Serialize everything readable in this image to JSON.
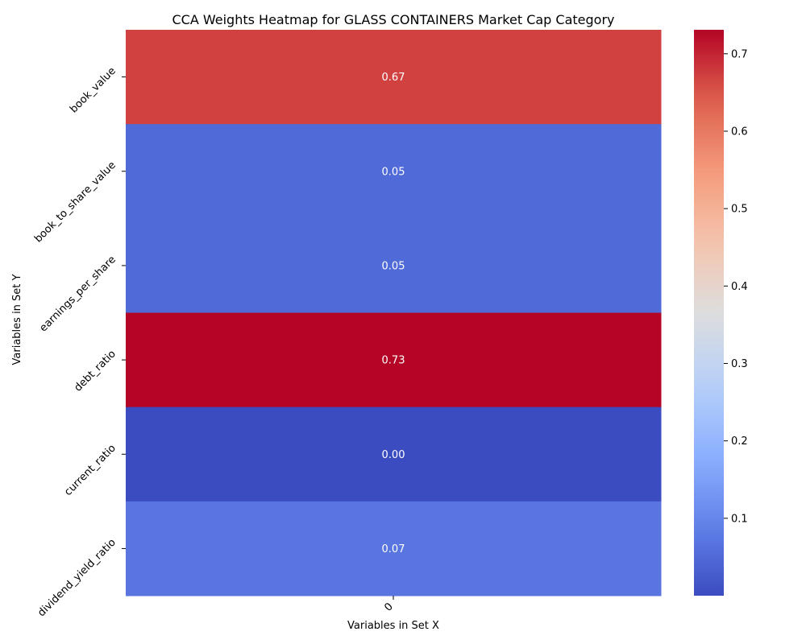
{
  "chart_data": {
    "type": "heatmap",
    "title": "CCA Weights Heatmap for GLASS CONTAINERS Market Cap Category",
    "xlabel": "Variables in Set X",
    "ylabel": "Variables in Set Y",
    "x_categories": [
      "0"
    ],
    "y_categories": [
      "book_value",
      "book_to_share_value",
      "earnings_per_share",
      "debt_ratio",
      "current_ratio",
      "dividend_yield_ratio"
    ],
    "values": [
      [
        0.67
      ],
      [
        0.05
      ],
      [
        0.05
      ],
      [
        0.73
      ],
      [
        0.0
      ],
      [
        0.07
      ]
    ],
    "value_format": "2 decimals",
    "colormap": "coolwarm",
    "color_range": [
      0.0,
      0.731
    ],
    "colorbar_ticks": [
      0.1,
      0.2,
      0.3,
      0.4,
      0.5,
      0.6,
      0.7
    ],
    "colorbar_tick_labels": [
      "0.1",
      "0.2",
      "0.3",
      "0.4",
      "0.5",
      "0.6",
      "0.7"
    ],
    "cell_text_color": "#ffffff"
  }
}
